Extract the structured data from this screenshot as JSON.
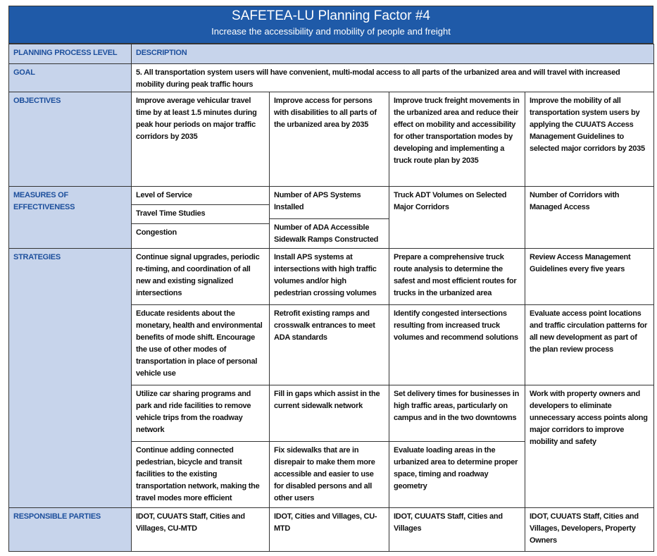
{
  "header": {
    "title": "SAFETEA-LU Planning Factor #4",
    "subtitle": "Increase the accessibility and mobility of people and freight"
  },
  "table": {
    "columns": [
      "PLANNING PROCESS LEVEL",
      "DESCRIPTION"
    ],
    "goal": {
      "label": "GOAL",
      "text": "5.  All transportation system users will have convenient, multi-modal access to all parts of the urbanized area and will travel with increased mobility during peak traffic hours"
    },
    "objectives": {
      "label": "OBJECTIVES",
      "items": [
        "Improve average vehicular travel time by at least 1.5 minutes during peak hour periods on major traffic corridors by 2035",
        "Improve access for persons with disabilities to all parts of the urbanized area by 2035",
        "Improve truck freight movements in the urbanized area and reduce their effect on mobility and accessibility for other transportation modes by developing and implementing a truck route plan by 2035",
        "Improve the mobility of all transportation system users by applying the CUUATS Access Management Guidelines to selected major corridors by 2035"
      ]
    },
    "measures": {
      "label": "MEASURES OF EFFECTIVENESS",
      "columns": [
        [
          "Level of Service",
          "Travel Time Studies",
          "Congestion"
        ],
        [
          "Number of  APS Systems Installed",
          "Number of ADA Accessible Sidewalk Ramps Constructed"
        ],
        [
          "Truck ADT Volumes on Selected Major Corridors"
        ],
        [
          "Number of Corridors with Managed Access"
        ]
      ]
    },
    "strategies": {
      "label": "STRATEGIES",
      "columns": [
        [
          "Continue signal upgrades, periodic re-timing, and coordination of all new and existing signalized intersections",
          "Educate residents about the monetary, health and environmental benefits of mode shift. Encourage the use of other modes of transportation in place of personal vehicle use",
          "Utilize car sharing programs and park and ride facilities to remove vehicle trips from the roadway network",
          "Continue adding connected pedestrian, bicycle and transit facilities to the existing transportation network, making the travel modes more efficient"
        ],
        [
          "Install APS systems at intersections with high traffic volumes and/or high pedestrian crossing volumes",
          "Retrofit existing ramps and crosswalk entrances to meet ADA standards",
          "Fill in gaps which assist in the current sidewalk network",
          "Fix sidewalks that are in disrepair to make them more accessible and easier to use for disabled persons and all other users"
        ],
        [
          "Prepare a comprehensive truck route analysis to determine the safest and most efficient routes for trucks in the urbanized area",
          "Identify congested intersections resulting from increased truck volumes and recommend solutions",
          "Set delivery times for businesses in high traffic areas, particularly on campus and in the two downtowns",
          "Evaluate loading areas in the urbanized area to determine proper space, timing and roadway geometry"
        ],
        [
          "Review Access Management Guidelines every five years",
          "Evaluate access point locations and traffic circulation patterns for all new development as part of the plan review process",
          "Work with property owners and developers to eliminate unnecessary access points along major corridors to improve mobility and safety"
        ]
      ]
    },
    "responsible": {
      "label": "RESPONSIBLE PARTIES",
      "items": [
        "IDOT, CUUATS Staff, Cities and Villages, CU-MTD",
        "IDOT, Cities and Villages, CU-MTD",
        "IDOT, CUUATS Staff, Cities and Villages",
        "IDOT, CUUATS Staff, Cities and Villages, Developers, Property Owners"
      ]
    }
  }
}
